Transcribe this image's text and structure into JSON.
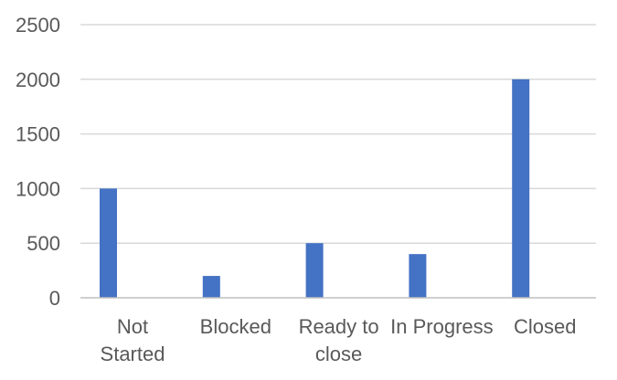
{
  "chart_data": {
    "type": "bar",
    "categories": [
      [
        "Not",
        "Started"
      ],
      [
        "Blocked"
      ],
      [
        "Ready to",
        "close"
      ],
      [
        "In Progress"
      ],
      [
        "Closed"
      ]
    ],
    "values": [
      1000,
      200,
      500,
      400,
      2000
    ],
    "y_ticks": [
      0,
      500,
      1000,
      1500,
      2000,
      2500
    ],
    "ylim": [
      0,
      2500
    ],
    "grid": true,
    "colors": {
      "bar": "#4472C4",
      "grid": "#D9D9D9",
      "axis": "#BFBFBF",
      "text": "#595959"
    }
  }
}
